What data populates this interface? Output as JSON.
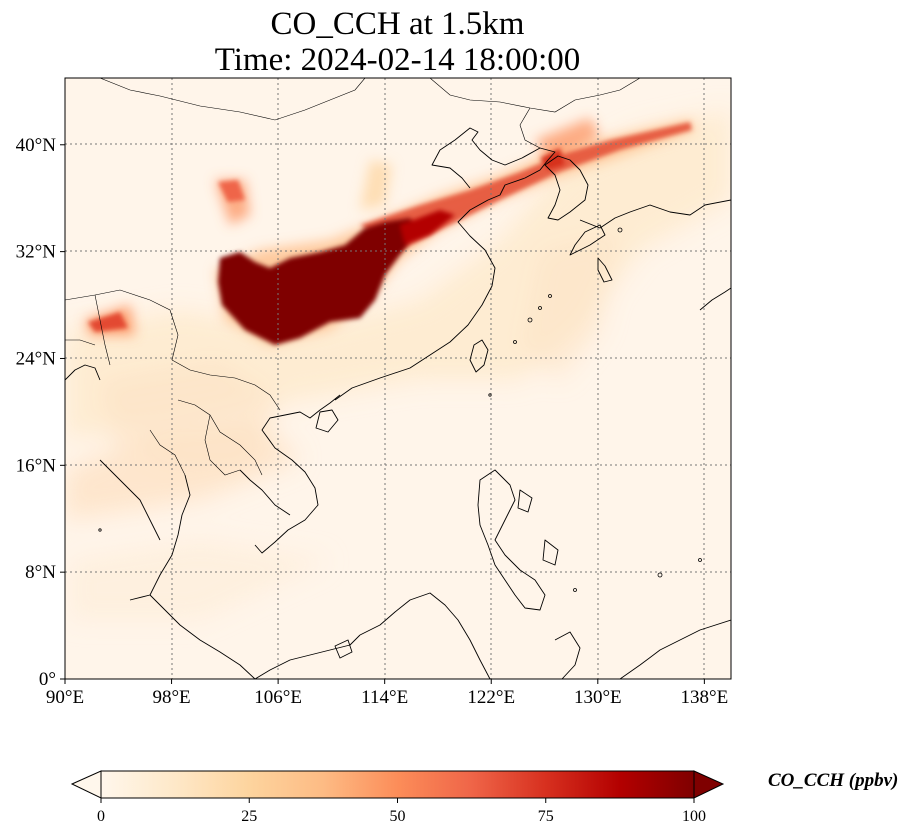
{
  "title": {
    "line1": "CO_CCH at 1.5km",
    "line2": "Time: 2024-02-14 18:00:00"
  },
  "map": {
    "type": "map",
    "field": "CO_CCH",
    "extent": {
      "lon": [
        90,
        140
      ],
      "lat": [
        0,
        45
      ]
    },
    "lon_ticks": [
      {
        "value": 90,
        "label": "90°E"
      },
      {
        "value": 98,
        "label": "98°E"
      },
      {
        "value": 106,
        "label": "106°E"
      },
      {
        "value": 114,
        "label": "114°E"
      },
      {
        "value": 122,
        "label": "122°E"
      },
      {
        "value": 130,
        "label": "130°E"
      },
      {
        "value": 138,
        "label": "138°E"
      }
    ],
    "lat_ticks": [
      {
        "value": 0,
        "label": "0°"
      },
      {
        "value": 8,
        "label": "8°N"
      },
      {
        "value": 16,
        "label": "16°N"
      },
      {
        "value": 24,
        "label": "24°N"
      },
      {
        "value": 32,
        "label": "32°N"
      },
      {
        "value": 40,
        "label": "40°N"
      }
    ],
    "gridlines": true,
    "coastlines": true,
    "borders": true
  },
  "colorbar": {
    "label": "CO_CCH (ppbv)",
    "min": 0,
    "max": 100,
    "extend": "both",
    "cmap": "OrRd",
    "ticks": [
      {
        "value": 0,
        "label": "0"
      },
      {
        "value": 25,
        "label": "25"
      },
      {
        "value": 50,
        "label": "50"
      },
      {
        "value": 75,
        "label": "75"
      },
      {
        "value": 100,
        "label": "100"
      }
    ],
    "colors": [
      "#fff7ec",
      "#fee8c8",
      "#fdd49e",
      "#fdbb84",
      "#fc8d59",
      "#ef6548",
      "#d7301f",
      "#b30000",
      "#7f0000"
    ]
  }
}
